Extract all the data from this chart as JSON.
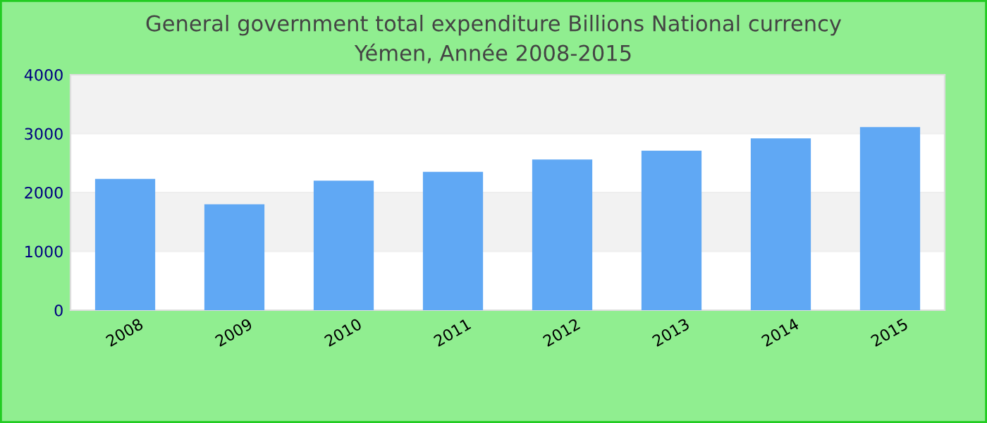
{
  "chart_data": {
    "type": "bar",
    "title": "General government total expenditure Billions National currency",
    "subtitle": "Yémen, Année 2008-2015",
    "categories": [
      "2008",
      "2009",
      "2010",
      "2011",
      "2012",
      "2013",
      "2014",
      "2015"
    ],
    "values": [
      2230,
      1800,
      2200,
      2350,
      2560,
      2710,
      2920,
      3110
    ],
    "color": "#60a8f4",
    "ylim": [
      0,
      4000
    ],
    "yticks": [
      0,
      1000,
      2000,
      3000,
      4000
    ],
    "grid": "y"
  }
}
